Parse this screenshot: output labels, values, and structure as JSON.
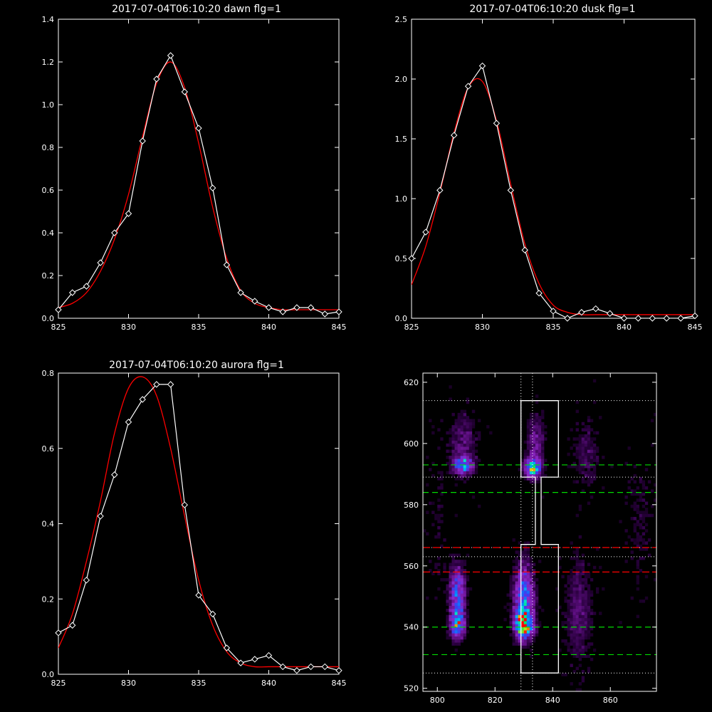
{
  "colors": {
    "background": "#000000",
    "axis": "#ffffff",
    "observed": "#ffffff",
    "fit": "#ff0000",
    "green_lines": "#00dd00",
    "red_lines": "#ff0000",
    "box": "#ffffff"
  },
  "chart_data": [
    {
      "type": "line",
      "title": "2017-07-04T06:10:20 dawn flg=1",
      "xlim": [
        825,
        845
      ],
      "ylim": [
        0,
        1.4
      ],
      "xticks": [
        825,
        830,
        835,
        840,
        845
      ],
      "yticks": [
        0.0,
        0.2,
        0.4,
        0.6,
        0.8,
        1.0,
        1.2,
        1.4
      ],
      "ytick_labels": [
        "0.0",
        "0.2",
        "0.4",
        "0.6",
        "0.8",
        "1.0",
        "1.2",
        "1.4"
      ],
      "grid": false,
      "series": [
        {
          "role": "observed",
          "marker": "diamond",
          "x": [
            825,
            826,
            827,
            828,
            829,
            830,
            831,
            832,
            833,
            834,
            835,
            836,
            837,
            838,
            839,
            840,
            841,
            842,
            843,
            844,
            845
          ],
          "y": [
            0.04,
            0.12,
            0.15,
            0.26,
            0.4,
            0.49,
            0.83,
            1.12,
            1.23,
            1.06,
            0.89,
            0.61,
            0.25,
            0.12,
            0.08,
            0.05,
            0.03,
            0.05,
            0.05,
            0.02,
            0.03
          ]
        },
        {
          "role": "fit",
          "x": [
            825,
            826,
            827,
            828,
            829,
            830,
            831,
            832,
            833,
            834,
            835,
            836,
            837,
            838,
            839,
            840,
            841,
            842,
            843,
            844,
            845
          ],
          "y": [
            0.05,
            0.07,
            0.12,
            0.22,
            0.37,
            0.58,
            0.85,
            1.1,
            1.2,
            1.08,
            0.82,
            0.52,
            0.28,
            0.13,
            0.07,
            0.05,
            0.04,
            0.04,
            0.04,
            0.04,
            0.04
          ]
        }
      ]
    },
    {
      "type": "line",
      "title": "2017-07-04T06:10:20 dusk flg=1",
      "xlim": [
        825,
        845
      ],
      "ylim": [
        0,
        2.5
      ],
      "xticks": [
        825,
        830,
        835,
        840,
        845
      ],
      "yticks": [
        0.0,
        0.5,
        1.0,
        1.5,
        2.0,
        2.5
      ],
      "ytick_labels": [
        "0.0",
        "0.5",
        "1.0",
        "1.5",
        "2.0",
        "2.5"
      ],
      "grid": false,
      "series": [
        {
          "role": "observed",
          "marker": "diamond",
          "x": [
            825,
            826,
            827,
            828,
            829,
            830,
            831,
            832,
            833,
            834,
            835,
            836,
            837,
            838,
            839,
            840,
            841,
            842,
            843,
            844,
            845
          ],
          "y": [
            0.5,
            0.72,
            1.07,
            1.53,
            1.94,
            2.11,
            1.63,
            1.07,
            0.57,
            0.21,
            0.06,
            0.0,
            0.05,
            0.08,
            0.04,
            0.0,
            0.0,
            0.0,
            0.0,
            0.0,
            0.02
          ]
        },
        {
          "role": "fit",
          "x": [
            825,
            826,
            827,
            828,
            829,
            830,
            831,
            832,
            833,
            834,
            835,
            836,
            837,
            838,
            839,
            840,
            841,
            842,
            843,
            844,
            845
          ],
          "y": [
            0.28,
            0.6,
            1.05,
            1.55,
            1.93,
            1.98,
            1.65,
            1.12,
            0.62,
            0.29,
            0.11,
            0.05,
            0.03,
            0.03,
            0.03,
            0.03,
            0.03,
            0.03,
            0.03,
            0.03,
            0.03
          ]
        }
      ]
    },
    {
      "type": "line",
      "title": "2017-07-04T06:10:20 aurora flg=1",
      "xlim": [
        825,
        845
      ],
      "ylim": [
        0,
        0.8
      ],
      "xticks": [
        825,
        830,
        835,
        840,
        845
      ],
      "yticks": [
        0.0,
        0.2,
        0.4,
        0.6,
        0.8
      ],
      "ytick_labels": [
        "0.0",
        "0.2",
        "0.4",
        "0.6",
        "0.8"
      ],
      "grid": false,
      "series": [
        {
          "role": "observed",
          "marker": "diamond",
          "x": [
            825,
            826,
            827,
            828,
            829,
            830,
            831,
            832,
            833,
            834,
            835,
            836,
            837,
            838,
            839,
            840,
            841,
            842,
            843,
            844,
            845
          ],
          "y": [
            0.11,
            0.13,
            0.25,
            0.42,
            0.53,
            0.67,
            0.73,
            0.77,
            0.77,
            0.45,
            0.21,
            0.16,
            0.07,
            0.03,
            0.04,
            0.05,
            0.02,
            0.01,
            0.02,
            0.02,
            0.01
          ]
        },
        {
          "role": "fit",
          "x": [
            825,
            826,
            827,
            828,
            829,
            830,
            831,
            832,
            833,
            834,
            835,
            836,
            837,
            838,
            839,
            840,
            841,
            842,
            843,
            844,
            845
          ],
          "y": [
            0.07,
            0.16,
            0.3,
            0.46,
            0.64,
            0.76,
            0.79,
            0.74,
            0.6,
            0.42,
            0.25,
            0.13,
            0.06,
            0.03,
            0.02,
            0.02,
            0.02,
            0.02,
            0.02,
            0.02,
            0.02
          ]
        }
      ]
    },
    {
      "type": "heatmap",
      "title": "",
      "xlim": [
        795,
        876
      ],
      "ylim": [
        519,
        623
      ],
      "xticks": [
        800,
        820,
        840,
        860
      ],
      "yticks": [
        520,
        540,
        560,
        580,
        600,
        620
      ],
      "grid": false,
      "blobs": [
        {
          "x": 807,
          "y": 541,
          "sx": 1.6,
          "sy": 3,
          "amp": 0.62
        },
        {
          "x": 807,
          "y": 551,
          "sx": 1.8,
          "sy": 6,
          "amp": 0.45
        },
        {
          "x": 809,
          "y": 593,
          "sx": 2.2,
          "sy": 1.8,
          "amp": 0.55
        },
        {
          "x": 830,
          "y": 541,
          "sx": 2.0,
          "sy": 3,
          "amp": 0.92
        },
        {
          "x": 830,
          "y": 550,
          "sx": 2.3,
          "sy": 7,
          "amp": 0.5
        },
        {
          "x": 833,
          "y": 592,
          "sx": 1.8,
          "sy": 2,
          "amp": 0.7
        },
        {
          "x": 834,
          "y": 600,
          "sx": 2.0,
          "sy": 6,
          "amp": 0.2
        },
        {
          "x": 809,
          "y": 600,
          "sx": 3.0,
          "sy": 7,
          "amp": 0.15
        },
        {
          "x": 849,
          "y": 545,
          "sx": 3.0,
          "sy": 12,
          "amp": 0.14
        },
        {
          "x": 852,
          "y": 597,
          "sx": 3.0,
          "sy": 8,
          "amp": 0.1
        },
        {
          "x": 870,
          "y": 575,
          "sx": 3.0,
          "sy": 14,
          "amp": 0.06
        },
        {
          "x": 800,
          "y": 575,
          "sx": 2.5,
          "sy": 20,
          "amp": 0.04
        }
      ],
      "vertical_dotted_lines_x": [
        829,
        833
      ],
      "green_dashed_lines_y": [
        593,
        584,
        540,
        531
      ],
      "white_dotted_lines_y": [
        614,
        589,
        566,
        563,
        525
      ],
      "red_dashed_lines_y": [
        566,
        558
      ],
      "box_outline": [
        [
          829,
          614
        ],
        [
          842,
          614
        ],
        [
          842,
          589
        ],
        [
          836,
          589
        ],
        [
          836,
          567
        ],
        [
          842,
          567
        ],
        [
          842,
          525
        ],
        [
          829,
          525
        ],
        [
          829,
          567
        ],
        [
          834,
          567
        ],
        [
          834,
          589
        ],
        [
          829,
          589
        ]
      ]
    }
  ]
}
